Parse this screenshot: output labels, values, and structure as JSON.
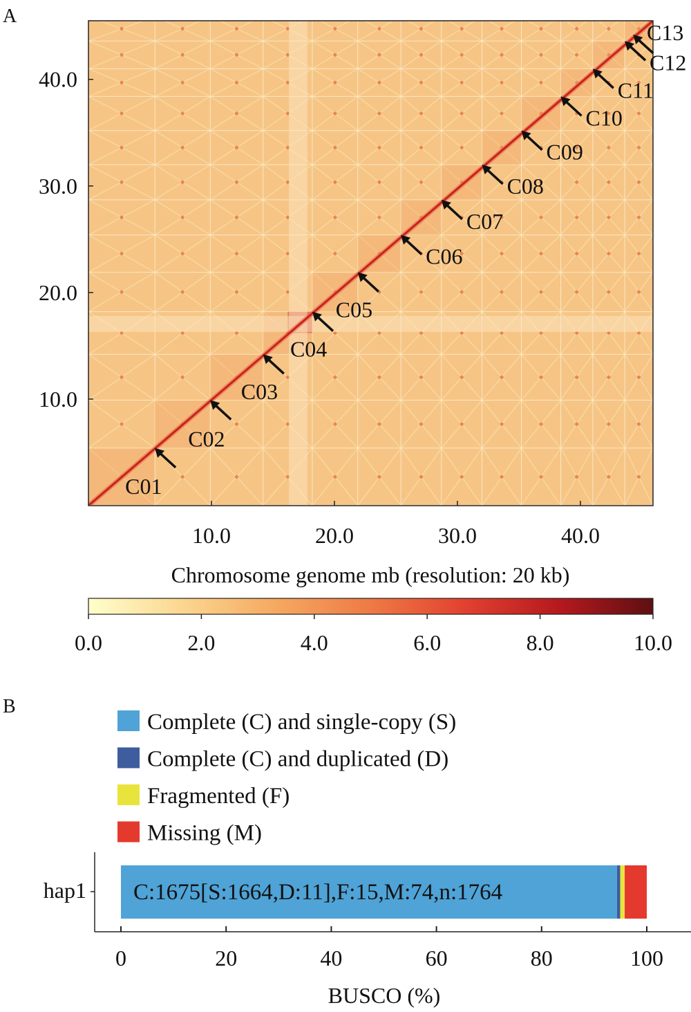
{
  "chart_data": [
    {
      "type": "heatmap",
      "panel_label": "A",
      "xlabel": "Chromosome genome mb (resolution: 20 kb)",
      "xlim": [
        0,
        45.9
      ],
      "ylim": [
        0,
        45.5
      ],
      "xticks": [
        10.0,
        20.0,
        30.0,
        40.0
      ],
      "yticks": [
        10.0,
        20.0,
        30.0,
        40.0
      ],
      "tick_labels": [
        "10.0",
        "20.0",
        "30.0",
        "40.0"
      ],
      "chromosomes": [
        {
          "name": "C01",
          "end_mb": 5.4
        },
        {
          "name": "C02",
          "end_mb": 9.9
        },
        {
          "name": "C03",
          "end_mb": 14.2
        },
        {
          "name": "C04",
          "end_mb": 18.2
        },
        {
          "name": "C05",
          "end_mb": 21.9
        },
        {
          "name": "C06",
          "end_mb": 25.4
        },
        {
          "name": "C07",
          "end_mb": 28.7
        },
        {
          "name": "C08",
          "end_mb": 32.0
        },
        {
          "name": "C09",
          "end_mb": 35.2
        },
        {
          "name": "C10",
          "end_mb": 38.4
        },
        {
          "name": "C11",
          "end_mb": 41.0
        },
        {
          "name": "C12",
          "end_mb": 43.6
        },
        {
          "name": "C13",
          "end_mb": 45.9
        }
      ],
      "colorbar": {
        "range": [
          0,
          10
        ],
        "ticks": [
          "0.0",
          "2.0",
          "4.0",
          "6.0",
          "8.0",
          "10.0"
        ],
        "colors": [
          "#ffffcc",
          "#fbd68f",
          "#f5a860",
          "#ee7a45",
          "#e2412f",
          "#b5191e",
          "#5e0f13"
        ]
      },
      "background_color": "#f6c585",
      "diagonal_color": "#c8221f"
    },
    {
      "type": "bar",
      "orientation": "horizontal",
      "stacked": true,
      "panel_label": "B",
      "categories": [
        "hap1"
      ],
      "xlabel": "BUSCO (%)",
      "xlim": [
        0,
        100
      ],
      "xticks": [
        "0",
        "20",
        "40",
        "60",
        "80",
        "100"
      ],
      "series": [
        {
          "name": "Complete (C) and single-copy (S)",
          "values": [
            94.33
          ],
          "color": "#4fa3d6"
        },
        {
          "name": "Complete (C) and duplicated (D)",
          "values": [
            0.62
          ],
          "color": "#3e5d9e"
        },
        {
          "name": "Fragmented (F)",
          "values": [
            0.85
          ],
          "color": "#e9e43c"
        },
        {
          "name": "Missing (M)",
          "values": [
            4.2
          ],
          "color": "#e43a2e"
        }
      ],
      "bar_annotation": "C:1675[S:1664,D:11],F:15,M:74,n:1764",
      "legend_position": "top-left"
    }
  ]
}
